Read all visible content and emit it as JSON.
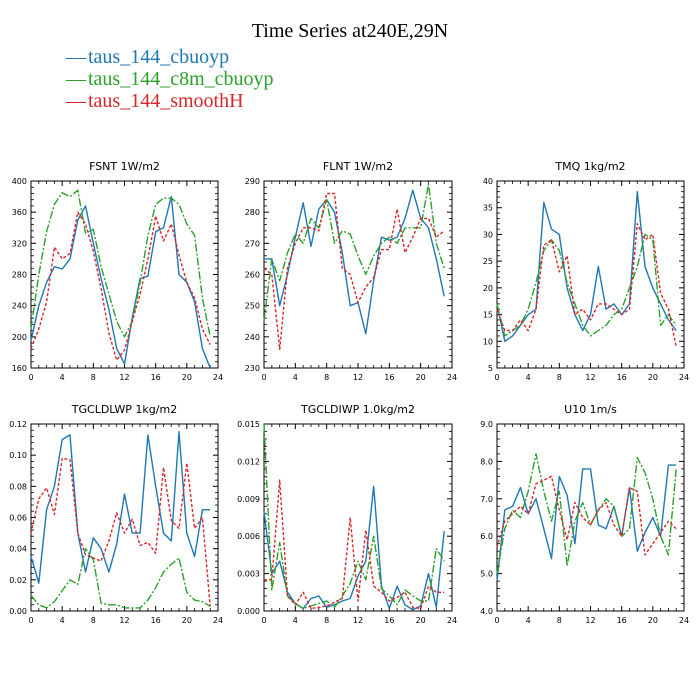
{
  "title": "Time Series at240E,29N",
  "legend": [
    {
      "label": "taus_144_cbuoyp",
      "color": "#1f77b4"
    },
    {
      "label": "taus_144_c8m_cbuoyp",
      "color": "#2ca02c"
    },
    {
      "label": "taus_144_smoothH",
      "color": "#d62728"
    }
  ],
  "chart_data": [
    {
      "type": "line",
      "title": "FSNT   1W/m2",
      "xlim": [
        0,
        24
      ],
      "xticks": [
        0,
        4,
        8,
        12,
        16,
        20,
        24
      ],
      "ylim": [
        160,
        400
      ],
      "yticks": [
        160,
        200,
        240,
        280,
        320,
        360,
        400
      ],
      "yticklabels": [
        "160",
        "200",
        "240",
        "280",
        "320",
        "360",
        "400"
      ],
      "x": [
        0,
        1,
        2,
        3,
        4,
        5,
        6,
        7,
        8,
        9,
        10,
        11,
        12,
        13,
        14,
        15,
        16,
        17,
        18,
        19,
        20,
        21,
        22,
        23
      ],
      "series": [
        {
          "values": [
            195,
            240,
            270,
            290,
            287,
            300,
            350,
            368,
            320,
            275,
            235,
            185,
            165,
            225,
            275,
            278,
            335,
            340,
            380,
            280,
            270,
            245,
            185,
            160
          ]
        },
        {
          "values": [
            210,
            280,
            335,
            370,
            385,
            380,
            388,
            333,
            338,
            290,
            255,
            220,
            200,
            220,
            270,
            330,
            370,
            378,
            378,
            370,
            345,
            330,
            250,
            200
          ]
        },
        {
          "values": [
            185,
            210,
            245,
            315,
            300,
            307,
            360,
            345,
            310,
            262,
            205,
            170,
            183,
            220,
            255,
            300,
            355,
            323,
            345,
            305,
            270,
            250,
            210,
            190
          ]
        }
      ]
    },
    {
      "type": "line",
      "title": "FLNT   1W/m2",
      "xlim": [
        0,
        24
      ],
      "xticks": [
        0,
        4,
        8,
        12,
        16,
        20,
        24
      ],
      "ylim": [
        230,
        290
      ],
      "yticks": [
        230,
        240,
        250,
        260,
        270,
        280,
        290
      ],
      "yticklabels": [
        "230",
        "240",
        "250",
        "260",
        "270",
        "280",
        "290"
      ],
      "x": [
        0,
        1,
        2,
        3,
        4,
        5,
        6,
        7,
        8,
        9,
        10,
        11,
        12,
        13,
        14,
        15,
        16,
        17,
        18,
        19,
        20,
        21,
        22,
        23
      ],
      "series": [
        {
          "values": [
            265,
            265,
            250,
            260,
            272,
            283,
            269,
            281,
            284,
            280,
            267,
            250,
            251,
            241,
            258,
            272,
            271,
            272,
            278,
            287,
            278,
            275,
            265,
            253
          ]
        },
        {
          "values": [
            245,
            265,
            258,
            267,
            273,
            270,
            278,
            275,
            284,
            270,
            274,
            273,
            266,
            260,
            266,
            270,
            272,
            270,
            275,
            275,
            275,
            289,
            270,
            262
          ]
        },
        {
          "values": [
            262,
            260,
            236,
            262,
            270,
            275,
            275,
            274,
            286,
            286,
            262,
            260,
            251,
            256,
            259,
            268,
            268,
            281,
            267,
            272,
            278,
            278,
            272,
            274
          ]
        }
      ]
    },
    {
      "type": "line",
      "title": "TMQ   1kg/m2",
      "xlim": [
        0,
        24
      ],
      "xticks": [
        0,
        4,
        8,
        12,
        16,
        20,
        24
      ],
      "ylim": [
        5,
        40
      ],
      "yticks": [
        5,
        10,
        15,
        20,
        25,
        30,
        35,
        40
      ],
      "yticklabels": [
        "5",
        "10",
        "15",
        "20",
        "25",
        "30",
        "35",
        "40"
      ],
      "x": [
        0,
        1,
        2,
        3,
        4,
        5,
        6,
        7,
        8,
        9,
        10,
        11,
        12,
        13,
        14,
        15,
        16,
        17,
        18,
        19,
        20,
        21,
        22,
        23
      ],
      "series": [
        {
          "values": [
            17,
            10,
            11,
            13,
            15,
            16,
            36,
            31,
            30,
            20,
            15,
            12,
            15,
            24,
            16,
            17,
            15,
            17,
            38,
            24,
            20,
            17,
            14,
            12
          ]
        },
        {
          "values": [
            17,
            11,
            12,
            13,
            16,
            21,
            27,
            29,
            27,
            21,
            17,
            13,
            11,
            12,
            13,
            15,
            16,
            20,
            24,
            30,
            29,
            13,
            15,
            13
          ]
        },
        {
          "values": [
            16,
            12,
            12,
            14,
            12,
            16,
            28,
            29,
            23,
            26,
            15,
            16,
            14,
            17,
            17,
            16,
            15,
            16,
            32,
            29,
            30,
            19,
            16,
            9
          ]
        }
      ]
    },
    {
      "type": "line",
      "title": "TGCLDLWP   1kg/m2",
      "xlim": [
        0,
        24
      ],
      "xticks": [
        0,
        4,
        8,
        12,
        16,
        20,
        24
      ],
      "ylim": [
        0,
        0.12
      ],
      "yticks": [
        0,
        0.02,
        0.04,
        0.06,
        0.08,
        0.1,
        0.12
      ],
      "yticklabels": [
        "0.00",
        "0.02",
        "0.04",
        "0.06",
        "0.08",
        "0.10",
        "0.12"
      ],
      "x": [
        0,
        1,
        2,
        3,
        4,
        5,
        6,
        7,
        8,
        9,
        10,
        11,
        12,
        13,
        14,
        15,
        16,
        17,
        18,
        19,
        20,
        21,
        22,
        23
      ],
      "series": [
        {
          "values": [
            0.035,
            0.018,
            0.065,
            0.08,
            0.11,
            0.113,
            0.05,
            0.025,
            0.047,
            0.04,
            0.025,
            0.043,
            0.075,
            0.05,
            0.05,
            0.113,
            0.08,
            0.05,
            0.045,
            0.115,
            0.05,
            0.035,
            0.065,
            0.065
          ]
        },
        {
          "values": [
            0.01,
            0.004,
            0.002,
            0.006,
            0.013,
            0.02,
            0.017,
            0.04,
            0.033,
            0.005,
            0.004,
            0.004,
            0.002,
            0.002,
            0.002,
            0.007,
            0.015,
            0.025,
            0.03,
            0.034,
            0.012,
            0.007,
            0.006,
            0.003
          ]
        },
        {
          "values": [
            0.05,
            0.072,
            0.079,
            0.062,
            0.098,
            0.097,
            0.05,
            0.036,
            0.034,
            0.032,
            0.045,
            0.063,
            0.05,
            0.059,
            0.042,
            0.044,
            0.037,
            0.092,
            0.058,
            0.053,
            0.095,
            0.053,
            0.06,
            0.003
          ]
        }
      ]
    },
    {
      "type": "line",
      "title": "TGCLDIWP   1.0kg/m2",
      "xlim": [
        0,
        24
      ],
      "xticks": [
        0,
        4,
        8,
        12,
        16,
        20,
        24
      ],
      "ylim": [
        0,
        0.015
      ],
      "yticks": [
        0,
        0.003,
        0.006,
        0.009,
        0.012,
        0.015
      ],
      "yticklabels": [
        "0.000",
        "0.003",
        "0.006",
        "0.009",
        "0.012",
        "0.015"
      ],
      "x": [
        0,
        1,
        2,
        3,
        4,
        5,
        6,
        7,
        8,
        9,
        10,
        11,
        12,
        13,
        14,
        15,
        16,
        17,
        18,
        19,
        20,
        21,
        22,
        23
      ],
      "series": [
        {
          "values": [
            0.008,
            0.003,
            0.004,
            0.0015,
            0.0006,
            0.0002,
            0.001,
            0.0012,
            0.0003,
            0.0005,
            0.0008,
            0.001,
            0.0028,
            0.004,
            0.01,
            0.002,
            0.0002,
            0.002,
            0.0005,
            0.0001,
            0.0004,
            0.003,
            0.0003,
            0.0064
          ]
        },
        {
          "values": [
            0.015,
            0.0017,
            0.0055,
            0.0012,
            0.0006,
            0.0002,
            0.0004,
            0.0006,
            0.0008,
            0.0003,
            0.0012,
            0.0022,
            0.004,
            0.0025,
            0.006,
            0.0018,
            0.0012,
            0.0005,
            0.0017,
            0.0012,
            0.0008,
            0.0008,
            0.005,
            0.004
          ]
        },
        {
          "values": [
            0.0025,
            0.0025,
            0.0105,
            0.0012,
            0.0005,
            0.0015,
            0.0002,
            0.0003,
            0.0004,
            0.0007,
            0.001,
            0.0075,
            0.0008,
            0.0065,
            0.002,
            0.0015,
            0.0008,
            0.0011,
            0.0015,
            0.0003,
            0.0002,
            0.002,
            0.0015,
            0.0015
          ]
        }
      ]
    },
    {
      "type": "line",
      "title": "U10   1m/s",
      "xlim": [
        0,
        24
      ],
      "xticks": [
        0,
        4,
        8,
        12,
        16,
        20,
        24
      ],
      "ylim": [
        4,
        9
      ],
      "yticks": [
        4,
        5,
        6,
        7,
        8,
        9
      ],
      "yticklabels": [
        "4.0",
        "5.0",
        "6.0",
        "7.0",
        "8.0",
        "9.0"
      ],
      "x": [
        0,
        1,
        2,
        3,
        4,
        5,
        6,
        7,
        8,
        9,
        10,
        11,
        12,
        13,
        14,
        15,
        16,
        17,
        18,
        19,
        20,
        21,
        22,
        23
      ],
      "series": [
        {
          "values": [
            4.8,
            6.7,
            6.8,
            7.3,
            6.6,
            7.0,
            6.2,
            5.4,
            7.6,
            7.1,
            5.8,
            7.8,
            7.8,
            6.3,
            6.2,
            6.8,
            6.0,
            7.3,
            5.6,
            6.1,
            6.5,
            6.0,
            7.9,
            7.9
          ]
        },
        {
          "values": [
            5.0,
            6.2,
            6.7,
            6.5,
            7.2,
            8.2,
            7.2,
            6.4,
            7.2,
            5.2,
            6.4,
            6.9,
            6.3,
            6.7,
            7.0,
            6.8,
            6.0,
            6.2,
            8.1,
            7.7,
            7.0,
            6.0,
            5.5,
            7.8
          ]
        },
        {
          "values": [
            5.7,
            6.4,
            6.6,
            6.8,
            6.6,
            7.4,
            7.5,
            7.6,
            6.7,
            5.9,
            6.9,
            6.5,
            6.3,
            6.7,
            6.9,
            6.3,
            6.0,
            7.3,
            7.2,
            5.5,
            5.8,
            6.1,
            6.4,
            6.2
          ]
        }
      ]
    }
  ]
}
